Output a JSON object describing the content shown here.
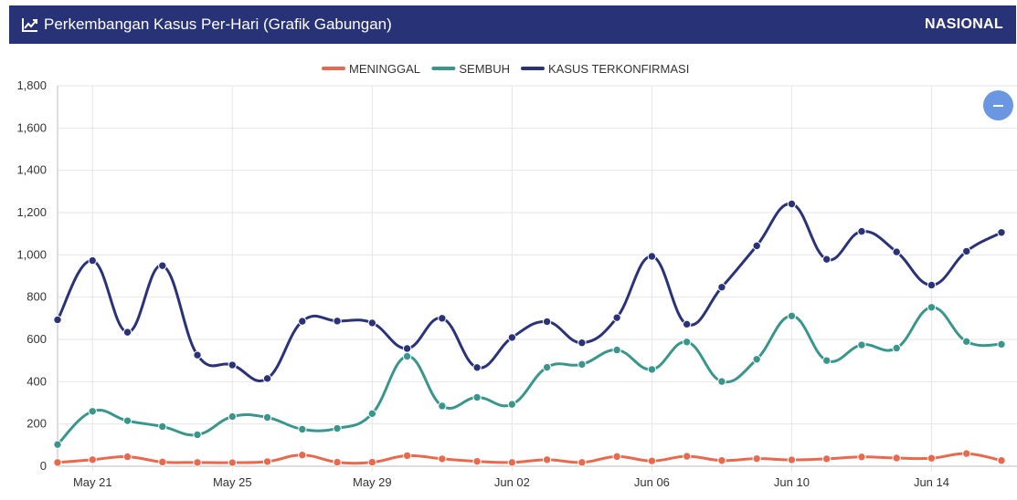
{
  "header": {
    "title": "Perkembangan Kasus Per-Hari (Grafik Gabungan)",
    "region": "NASIONAL",
    "icon": "line-chart-icon"
  },
  "zoom_button": {
    "icon": "minus-icon"
  },
  "chart_data": {
    "type": "line",
    "title": "",
    "xlabel": "",
    "ylabel": "",
    "ylim": [
      0,
      1800
    ],
    "y_ticks": [
      0,
      200,
      400,
      600,
      800,
      1000,
      1200,
      1400,
      1600,
      1800
    ],
    "y_tick_labels": [
      "0",
      "200",
      "400",
      "600",
      "800",
      "1,000",
      "1,200",
      "1,400",
      "1,600",
      "1,800"
    ],
    "grid": true,
    "legend_position": "top-center",
    "x": [
      "May 20",
      "May 21",
      "May 22",
      "May 23",
      "May 24",
      "May 25",
      "May 26",
      "May 27",
      "May 28",
      "May 29",
      "May 30",
      "May 31",
      "Jun 01",
      "Jun 02",
      "Jun 03",
      "Jun 04",
      "Jun 05",
      "Jun 06",
      "Jun 07",
      "Jun 08",
      "Jun 09",
      "Jun 10",
      "Jun 11",
      "Jun 12",
      "Jun 13",
      "Jun 14",
      "Jun 15",
      "Jun 16"
    ],
    "x_tick_labels": [
      "May 21",
      "May 25",
      "May 29",
      "Jun 02",
      "Jun 06",
      "Jun 10",
      "Jun 14"
    ],
    "series": [
      {
        "name": "MENINGGAL",
        "color": "#e8694d",
        "values": [
          18,
          31,
          45,
          20,
          18,
          17,
          22,
          53,
          19,
          19,
          50,
          35,
          23,
          18,
          31,
          18,
          46,
          25,
          47,
          27,
          36,
          30,
          35,
          44,
          39,
          38,
          60,
          27
        ]
      },
      {
        "name": "SEMBUH",
        "color": "#3a968c",
        "values": [
          103,
          260,
          215,
          188,
          149,
          235,
          231,
          175,
          179,
          249,
          520,
          285,
          326,
          293,
          468,
          482,
          550,
          458,
          588,
          401,
          506,
          711,
          500,
          574,
          559,
          752,
          590,
          577
        ]
      },
      {
        "name": "KASUS TERKONFIRMASI",
        "color": "#2a3378",
        "values": [
          693,
          973,
          634,
          949,
          526,
          479,
          415,
          686,
          687,
          678,
          557,
          700,
          467,
          609,
          684,
          584,
          703,
          993,
          672,
          847,
          1043,
          1241,
          979,
          1111,
          1014,
          857,
          1017,
          1106
        ]
      }
    ]
  }
}
